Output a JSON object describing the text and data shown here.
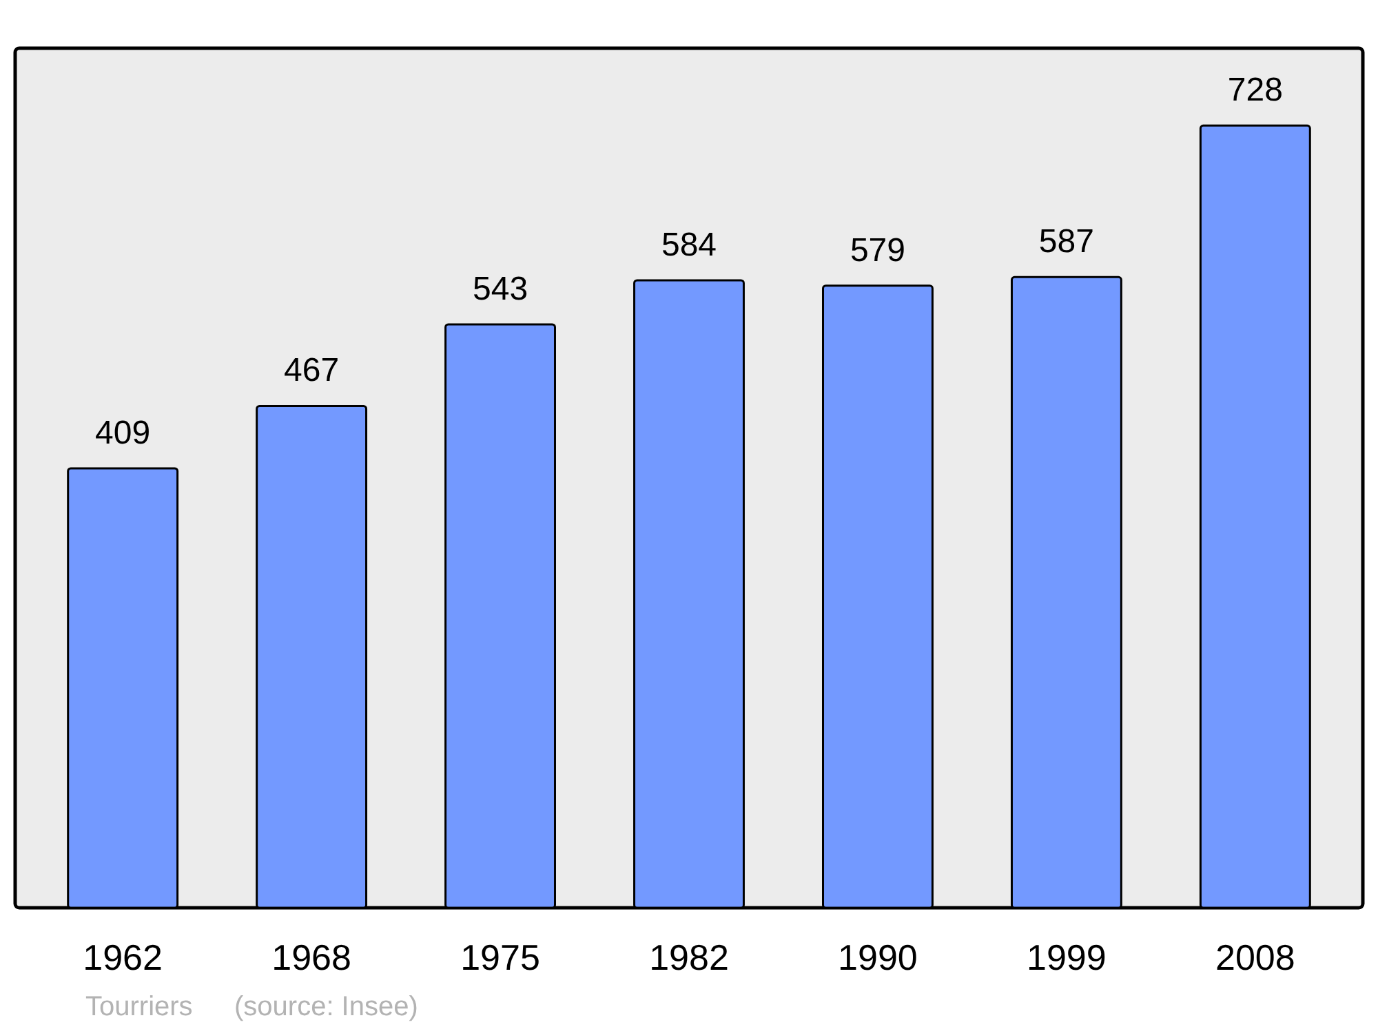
{
  "chart_data": {
    "type": "bar",
    "categories": [
      "1962",
      "1968",
      "1975",
      "1982",
      "1990",
      "1999",
      "2008"
    ],
    "values": [
      409,
      467,
      543,
      584,
      579,
      587,
      728
    ],
    "color": "#7399ff",
    "ylim": [
      0,
      800
    ],
    "data_labels": true,
    "annotations": [
      "Tourriers",
      "(source: Insee)"
    ]
  }
}
